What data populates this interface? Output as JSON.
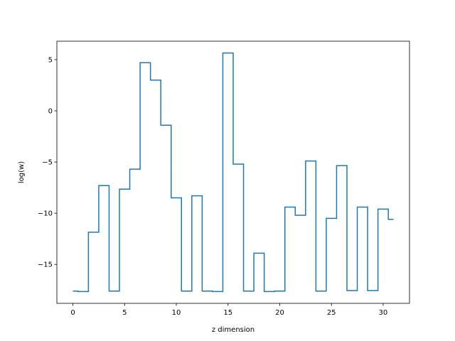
{
  "chart_data": {
    "type": "line",
    "step": "mid",
    "title": "",
    "xlabel": "z dimension",
    "ylabel": "log(w)",
    "xlim": [
      -1.55,
      32.55
    ],
    "ylim": [
      -18.8,
      6.8
    ],
    "xticks": [
      0,
      5,
      10,
      15,
      20,
      25,
      30
    ],
    "yticks": [
      -15,
      -10,
      -5,
      0,
      5
    ],
    "ytick_labels": [
      "−15",
      "−10",
      "−5",
      "0",
      "5"
    ],
    "grid": false,
    "legend": "none",
    "color": "#1f77b4",
    "series": [
      {
        "x": [
          0,
          1,
          2,
          3,
          4,
          5,
          6,
          7,
          8,
          9,
          10,
          11,
          12,
          13,
          14,
          15,
          16,
          17,
          18,
          19,
          20,
          21,
          22,
          23,
          24,
          25,
          26,
          27,
          28,
          29,
          30,
          31
        ],
        "values": [
          -17.6,
          -17.65,
          -11.85,
          -7.3,
          -17.6,
          -7.65,
          -5.7,
          4.7,
          3.0,
          -1.4,
          -8.5,
          -17.6,
          -8.3,
          -17.6,
          -17.65,
          5.65,
          -5.2,
          -17.6,
          -13.9,
          -17.65,
          -17.6,
          -9.4,
          -10.2,
          -4.9,
          -17.6,
          -10.5,
          -5.35,
          -17.55,
          -9.4,
          -17.55,
          -9.6,
          -10.6
        ]
      }
    ]
  }
}
